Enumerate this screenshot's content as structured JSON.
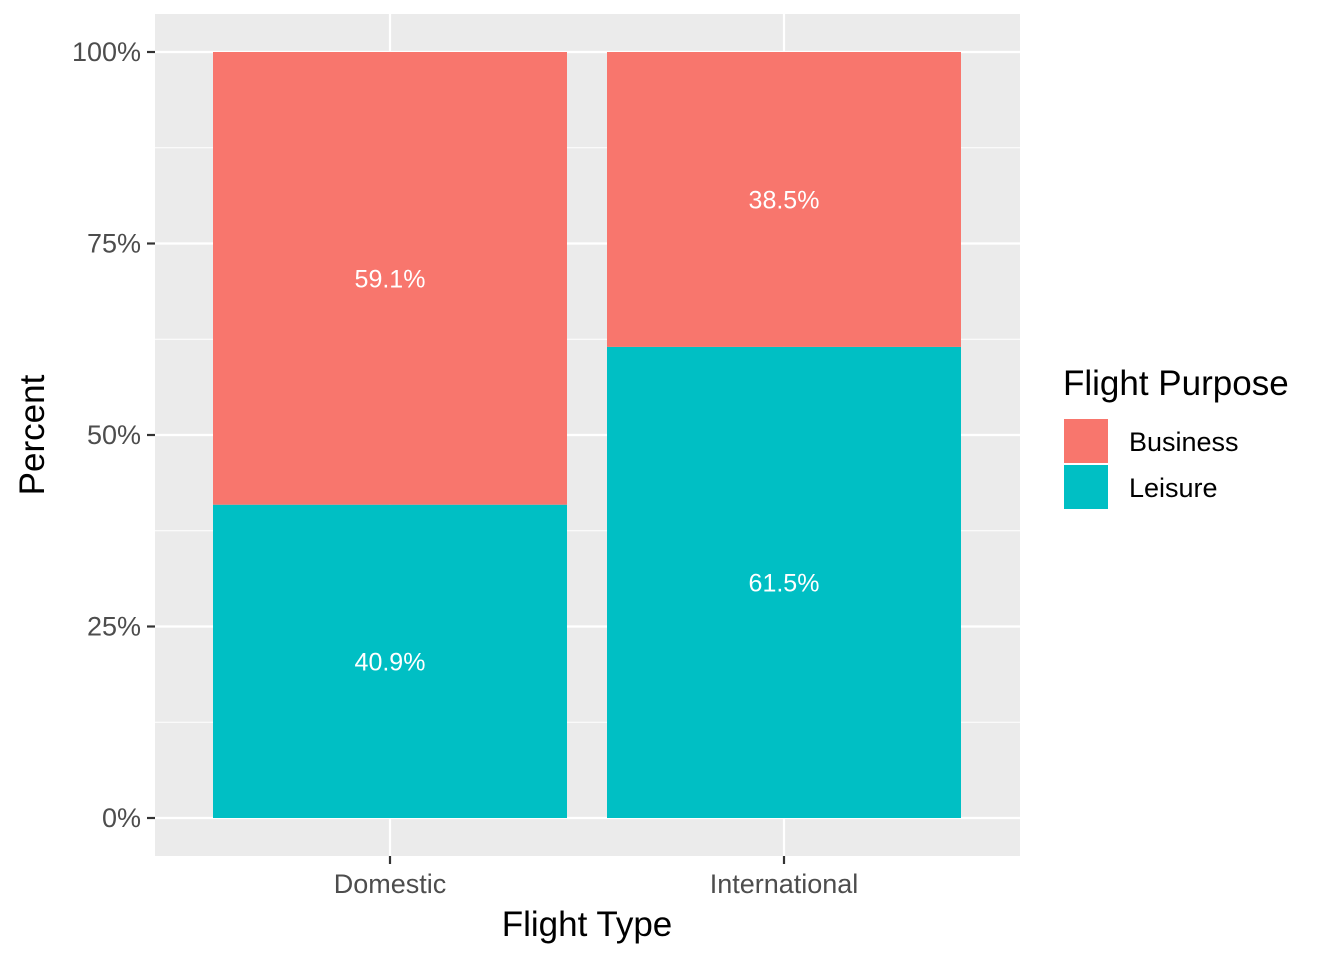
{
  "chart_data": {
    "type": "bar",
    "stacked": true,
    "categories": [
      "Domestic",
      "International"
    ],
    "series": [
      {
        "name": "Business",
        "values": [
          59.1,
          38.5
        ],
        "labels": [
          "59.1%",
          "38.5%"
        ],
        "color": "#F8766D"
      },
      {
        "name": "Leisure",
        "values": [
          40.9,
          61.5
        ],
        "labels": [
          "40.9%",
          "61.5%"
        ],
        "color": "#00BFC4"
      }
    ],
    "xlabel": "Flight Type",
    "ylabel": "Percent",
    "ylim": [
      0,
      100
    ],
    "yticks": [
      0,
      25,
      50,
      75,
      100
    ],
    "ytick_labels": [
      "0%",
      "25%",
      "50%",
      "75%",
      "100%"
    ],
    "legend_title": "Flight Purpose",
    "legend_position": "right",
    "grid": true,
    "panel_background": "#EBEBEB",
    "gridline_color": "#FFFFFF"
  }
}
